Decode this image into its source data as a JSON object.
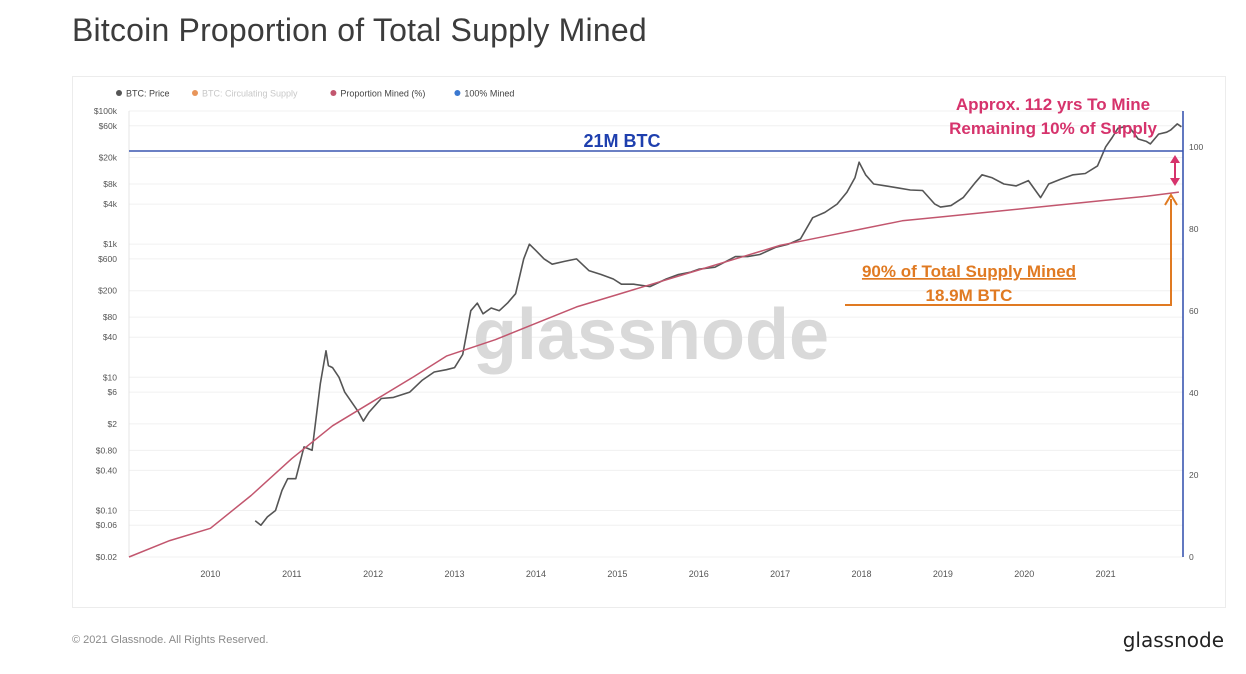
{
  "page": {
    "title": "Bitcoin Proportion of Total Supply Mined",
    "footer_copyright": "© 2021 Glassnode. All Rights Reserved.",
    "footer_brand": "glassnode",
    "watermark": "glassnode"
  },
  "legend": [
    {
      "label": "BTC: Price",
      "color": "#555555",
      "faded": false
    },
    {
      "label": "BTC: Circulating Supply",
      "color": "#e8955a",
      "faded": true
    },
    {
      "label": "Proportion Mined (%)",
      "color": "#c2566e",
      "faded": false
    },
    {
      "label": "100% Mined",
      "color": "#3a78d0",
      "faded": false
    }
  ],
  "annotations": {
    "supply_line_label": "21M BTC",
    "remaining_line1": "Approx. 112 yrs To Mine",
    "remaining_line2": "Remaining 10% of Supply",
    "mined_line1": "90% of Total Supply Mined",
    "mined_line2": "18.9M BTC",
    "colors": {
      "blue": "#1e3fae",
      "magenta": "#d6336c",
      "orange": "#e07a22"
    }
  },
  "chart_data": {
    "type": "line",
    "title": "Bitcoin Proportion of Total Supply Mined",
    "x_ticks": [
      "2010",
      "2011",
      "2012",
      "2013",
      "2014",
      "2015",
      "2016",
      "2017",
      "2018",
      "2019",
      "2020",
      "2021"
    ],
    "y_left_scale": "log",
    "y_left_ticks": [
      "$100k",
      "$60k",
      "$20k",
      "$8k",
      "$4k",
      "$1k",
      "$600",
      "$200",
      "$80",
      "$40",
      "$10",
      "$6",
      "$2",
      "$0.80",
      "$0.40",
      "$0.10",
      "$0.06",
      "$0.02"
    ],
    "y_left_range": [
      0.02,
      100000
    ],
    "y_right_ticks": [
      "100",
      "80",
      "60",
      "40",
      "20",
      "0"
    ],
    "y_right_range": [
      0,
      100
    ],
    "grid": true,
    "legend_position": "top-left",
    "series": [
      {
        "name": "BTC: Price",
        "axis": "left",
        "x": [
          2010.55,
          2010.62,
          2010.7,
          2010.8,
          2010.88,
          2010.95,
          2011.05,
          2011.15,
          2011.25,
          2011.35,
          2011.42,
          2011.45,
          2011.5,
          2011.58,
          2011.65,
          2011.75,
          2011.82,
          2011.88,
          2011.95,
          2012.1,
          2012.25,
          2012.45,
          2012.6,
          2012.75,
          2012.9,
          2013.0,
          2013.1,
          2013.2,
          2013.28,
          2013.35,
          2013.45,
          2013.55,
          2013.65,
          2013.75,
          2013.85,
          2013.92,
          2014.0,
          2014.1,
          2014.2,
          2014.35,
          2014.5,
          2014.65,
          2014.8,
          2014.95,
          2015.05,
          2015.2,
          2015.4,
          2015.6,
          2015.75,
          2015.9,
          2016.0,
          2016.2,
          2016.45,
          2016.6,
          2016.75,
          2016.95,
          2017.1,
          2017.25,
          2017.4,
          2017.55,
          2017.7,
          2017.82,
          2017.92,
          2017.97,
          2018.05,
          2018.15,
          2018.3,
          2018.45,
          2018.6,
          2018.75,
          2018.9,
          2018.97,
          2019.1,
          2019.25,
          2019.4,
          2019.48,
          2019.6,
          2019.75,
          2019.9,
          2020.05,
          2020.2,
          2020.3,
          2020.45,
          2020.6,
          2020.75,
          2020.9,
          2021.0,
          2021.08,
          2021.15,
          2021.28,
          2021.4,
          2021.5,
          2021.55,
          2021.65,
          2021.75,
          2021.8,
          2021.88,
          2021.93
        ],
        "values": [
          0.07,
          0.06,
          0.08,
          0.1,
          0.2,
          0.3,
          0.3,
          0.9,
          0.8,
          8,
          25,
          15,
          14,
          10,
          6,
          4,
          3,
          2.2,
          3,
          4.8,
          5,
          6,
          9,
          12,
          13,
          14,
          22,
          100,
          130,
          90,
          110,
          100,
          130,
          180,
          600,
          1000,
          800,
          600,
          500,
          550,
          600,
          400,
          350,
          300,
          250,
          250,
          230,
          300,
          350,
          380,
          420,
          450,
          650,
          650,
          700,
          900,
          1000,
          1200,
          2500,
          3000,
          4000,
          6000,
          10000,
          17000,
          11000,
          8000,
          7500,
          7000,
          6500,
          6400,
          4000,
          3600,
          3800,
          5000,
          8500,
          11000,
          10000,
          8000,
          7500,
          9000,
          5000,
          8000,
          9500,
          11000,
          11500,
          15000,
          29000,
          40000,
          55000,
          60000,
          38000,
          35000,
          32000,
          45000,
          48000,
          52000,
          64000,
          58000
        ]
      },
      {
        "name": "Proportion Mined (%)",
        "axis": "right",
        "x": [
          2009.0,
          2009.5,
          2010.0,
          2010.5,
          2011.0,
          2011.5,
          2012.0,
          2012.5,
          2012.9,
          2013.5,
          2014.0,
          2014.5,
          2015.0,
          2015.5,
          2016.0,
          2016.5,
          2017.0,
          2017.5,
          2018.0,
          2018.5,
          2019.0,
          2019.5,
          2020.0,
          2020.5,
          2021.0,
          2021.5,
          2021.9
        ],
        "values": [
          0,
          4,
          7,
          15,
          24,
          32,
          38,
          44,
          49,
          53,
          57,
          61,
          64,
          67,
          70,
          73,
          76,
          78,
          80,
          82,
          83,
          84,
          85,
          86,
          87,
          88,
          89
        ]
      },
      {
        "name": "100% Mined",
        "axis": "right",
        "x": [
          2009.0,
          2021.9
        ],
        "values": [
          100,
          100
        ]
      }
    ]
  }
}
